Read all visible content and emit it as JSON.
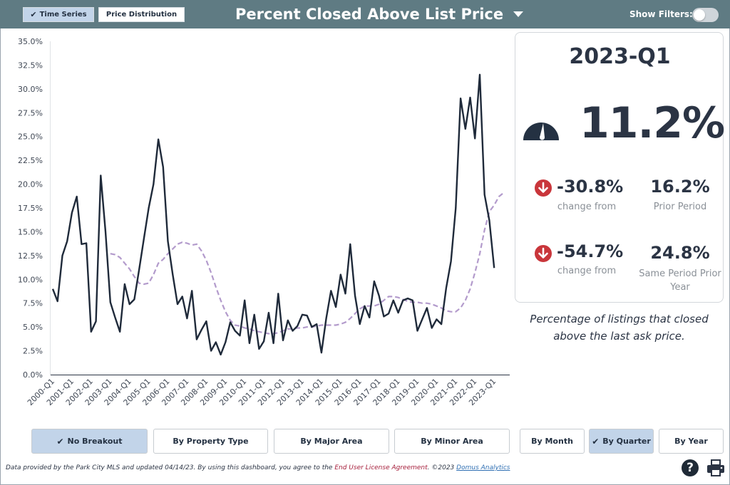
{
  "header": {
    "tabs": [
      {
        "label": "Time Series",
        "selected": true
      },
      {
        "label": "Price Distribution",
        "selected": false
      }
    ],
    "title": "Percent Closed Above List Price",
    "filters_label": "Show Filters:",
    "filters_enabled": false
  },
  "stats": {
    "period": "2023-Q1",
    "value": "11.2%",
    "change_prior": "-30.8%",
    "change_prior_caption": "change from",
    "prior_value": "16.2%",
    "prior_caption": "Prior Period",
    "change_year": "-54.7%",
    "change_year_caption": "change from",
    "year_value": "24.8%",
    "year_caption_1": "Same Period Prior",
    "year_caption_2": "Year",
    "description_1": "Percentage of listings that closed",
    "description_2": "above the last ask price."
  },
  "breakout": {
    "buttons": [
      {
        "label": "No Breakout",
        "selected": true
      },
      {
        "label": "By Property Type",
        "selected": false
      },
      {
        "label": "By Major Area",
        "selected": false
      },
      {
        "label": "By Minor Area",
        "selected": false
      },
      {
        "label": "By Month",
        "selected": false
      },
      {
        "label": "By Quarter",
        "selected": true
      },
      {
        "label": "By Year",
        "selected": false
      }
    ]
  },
  "footer": {
    "text_1": "Data provided by the Park City MLS and updated 04/14/23.  By using this dashboard, you agree to the ",
    "eula": "End User License Agreement",
    "text_2": ".  ©2023 ",
    "brand": "Domus Analytics"
  },
  "icons": {
    "check": "check-icon",
    "gauge": "gauge-icon",
    "down_arrow": "down-arrow-icon",
    "help": "help-icon",
    "print": "printer-icon",
    "caret": "chevron-down-icon"
  },
  "colors": {
    "header": "#5f7b83",
    "selected": "#c2d4e9",
    "line": "#1f2a3a",
    "trend": "#b39bcc",
    "down": "#c9363b"
  },
  "chart_data": {
    "type": "line",
    "x_tick_labels": [
      "2000-Q1",
      "2001-Q1",
      "2002-Q1",
      "2003-Q1",
      "2004-Q1",
      "2005-Q1",
      "2006-Q1",
      "2007-Q1",
      "2008-Q1",
      "2009-Q1",
      "2010-Q1",
      "2011-Q1",
      "2012-Q1",
      "2013-Q1",
      "2014-Q1",
      "2015-Q1",
      "2016-Q1",
      "2017-Q1",
      "2018-Q1",
      "2019-Q1",
      "2020-Q1",
      "2021-Q1",
      "2022-Q1",
      "2023-Q1"
    ],
    "y_tick_labels": [
      "0.0%",
      "2.5%",
      "5.0%",
      "7.5%",
      "10.0%",
      "12.5%",
      "15.0%",
      "17.5%",
      "20.0%",
      "22.5%",
      "25.0%",
      "27.5%",
      "30.0%",
      "32.5%",
      "35.0%"
    ],
    "ylim": [
      0,
      35
    ],
    "grid": false,
    "series": [
      {
        "style": "solid",
        "start_index": 0,
        "values": [
          9.0,
          7.7,
          12.5,
          14.0,
          17.0,
          18.7,
          13.7,
          13.8,
          4.5,
          5.6,
          20.9,
          15.0,
          7.6,
          6.0,
          4.5,
          9.5,
          7.4,
          7.9,
          11.0,
          14.3,
          17.5,
          20.0,
          24.7,
          21.8,
          14.0,
          10.5,
          7.4,
          8.2,
          5.9,
          8.8,
          3.7,
          4.7,
          5.6,
          2.5,
          3.4,
          2.1,
          3.4,
          5.5,
          4.6,
          4.1,
          7.8,
          3.3,
          6.3,
          2.7,
          3.5,
          6.5,
          3.3,
          8.5,
          3.6,
          5.7,
          4.6,
          5.1,
          6.3,
          6.2,
          5.0,
          5.3,
          2.3,
          5.9,
          8.8,
          7.1,
          10.5,
          8.5,
          13.7,
          8.3,
          5.3,
          7.2,
          6.0,
          9.8,
          8.3,
          6.1,
          6.4,
          7.8,
          6.5,
          7.8,
          8.0,
          7.8,
          4.6,
          5.8,
          7.0,
          4.9,
          5.8,
          5.3,
          9.1,
          11.9,
          17.5,
          29.0,
          25.8,
          29.1,
          24.8,
          31.5,
          18.9,
          16.2,
          11.2
        ]
      },
      {
        "style": "dashed",
        "start_index": 12,
        "values": [
          12.7,
          12.6,
          12.3,
          11.7,
          11.1,
          10.3,
          9.6,
          9.5,
          9.6,
          10.5,
          11.7,
          12.1,
          12.7,
          13.2,
          13.7,
          13.9,
          13.8,
          13.6,
          13.7,
          13.0,
          12.0,
          10.7,
          9.2,
          7.8,
          6.6,
          5.7,
          5.2,
          5.1,
          4.9,
          4.8,
          4.6,
          4.5,
          4.4,
          4.3,
          4.3,
          4.4,
          4.6,
          4.8,
          4.8,
          4.9,
          4.9,
          5.0,
          5.0,
          5.1,
          5.2,
          5.2,
          5.2,
          5.2,
          5.3,
          5.5,
          5.9,
          6.4,
          6.9,
          7.2,
          7.2,
          7.2,
          7.4,
          7.8,
          8.2,
          8.2,
          8.1,
          7.9,
          7.7,
          7.6,
          7.6,
          7.5,
          7.5,
          7.4,
          7.2,
          7.0,
          6.7,
          6.6,
          6.6,
          7.0,
          7.8,
          9.0,
          10.7,
          12.7,
          15.2,
          17.1,
          17.8,
          18.7,
          19.1
        ]
      }
    ]
  }
}
